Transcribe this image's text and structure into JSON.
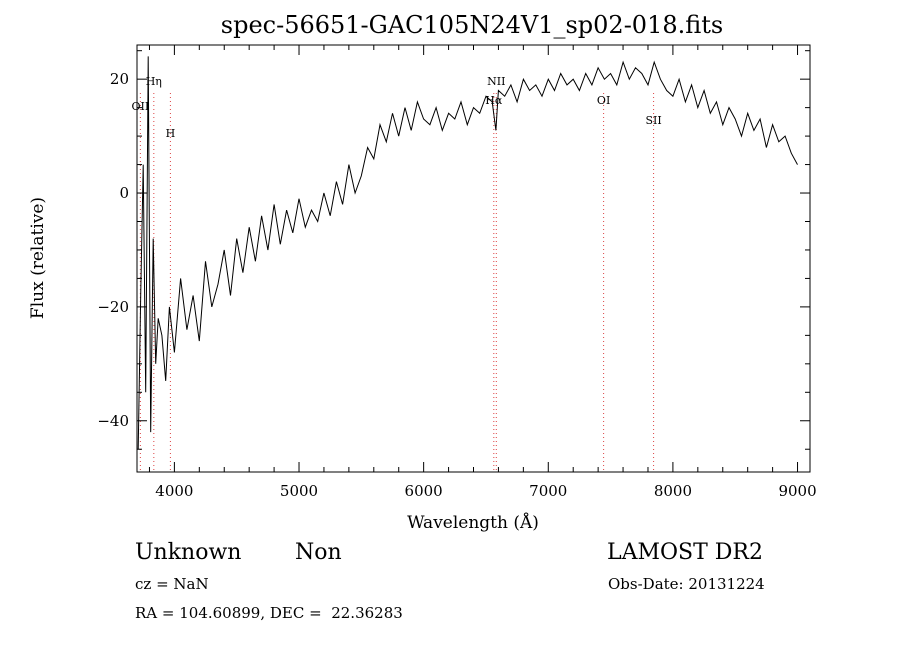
{
  "chart_data": {
    "type": "line",
    "title": "spec-56651-GAC105N24V1_sp02-018.fits",
    "xlabel": "Wavelength (Å)",
    "ylabel": "Flux (relative)",
    "xlim": [
      3700,
      9100
    ],
    "ylim": [
      -49,
      26
    ],
    "x_ticks": [
      4000,
      5000,
      6000,
      7000,
      8000,
      9000
    ],
    "y_ticks": [
      -40,
      -20,
      0,
      20
    ],
    "grid": false,
    "series": [
      {
        "x": [
          3710,
          3730,
          3750,
          3770,
          3790,
          3810,
          3830,
          3850,
          3870,
          3900,
          3930,
          3960,
          4000,
          4050,
          4100,
          4150,
          4200,
          4250,
          4300,
          4350,
          4400,
          4450,
          4500,
          4550,
          4600,
          4650,
          4700,
          4750,
          4800,
          4850,
          4900,
          4950,
          5000,
          5050,
          5100,
          5150,
          5200,
          5250,
          5300,
          5350,
          5400,
          5450,
          5500,
          5550,
          5600,
          5650,
          5700,
          5750,
          5800,
          5850,
          5900,
          5950,
          6000,
          6050,
          6100,
          6150,
          6200,
          6250,
          6300,
          6350,
          6400,
          6450,
          6500,
          6550,
          6580,
          6600,
          6650,
          6700,
          6750,
          6800,
          6850,
          6900,
          6950,
          7000,
          7050,
          7100,
          7150,
          7200,
          7250,
          7300,
          7350,
          7400,
          7450,
          7500,
          7550,
          7600,
          7650,
          7700,
          7750,
          7800,
          7850,
          7900,
          7950,
          8000,
          8050,
          8100,
          8150,
          8200,
          8250,
          8300,
          8350,
          8400,
          8450,
          8500,
          8550,
          8600,
          8650,
          8700,
          8750,
          8800,
          8850,
          8900,
          8950,
          9000
        ],
        "y": [
          -45,
          -18,
          5,
          -35,
          24,
          -42,
          -8,
          -30,
          -22,
          -25,
          -33,
          -20,
          -28,
          -15,
          -24,
          -18,
          -26,
          -12,
          -20,
          -16,
          -10,
          -18,
          -8,
          -14,
          -6,
          -12,
          -4,
          -10,
          -2,
          -9,
          -3,
          -7,
          -1,
          -6,
          -3,
          -5,
          0,
          -4,
          2,
          -2,
          5,
          0,
          3,
          8,
          6,
          12,
          9,
          14,
          10,
          15,
          11,
          16,
          13,
          12,
          15,
          11,
          14,
          13,
          16,
          12,
          15,
          14,
          17,
          16,
          11,
          18,
          17,
          19,
          16,
          20,
          18,
          19,
          17,
          20,
          18,
          21,
          19,
          20,
          18,
          21,
          19,
          22,
          20,
          21,
          19,
          23,
          20,
          22,
          21,
          19,
          23,
          20,
          18,
          17,
          20,
          16,
          19,
          15,
          18,
          14,
          16,
          12,
          15,
          13,
          10,
          14,
          11,
          13,
          8,
          12,
          9,
          10,
          7,
          5
        ]
      }
    ],
    "lines": [
      {
        "label": "OII",
        "x": 3727
      },
      {
        "label": "Hη",
        "x": 3835
      },
      {
        "label": "H",
        "x": 3968
      },
      {
        "label": "NII",
        "x": 6583
      },
      {
        "label": "Hα",
        "x": 6563
      },
      {
        "label": "OI",
        "x": 7444
      },
      {
        "label": "SII",
        "x": 7845
      }
    ]
  },
  "info": {
    "object_class": "Unknown",
    "subclass": "Non",
    "survey": "LAMOST DR2",
    "cz": "cz = NaN",
    "obs_date": "Obs-Date: 20131224",
    "radec": "RA = 104.60899, DEC =  22.36283"
  }
}
